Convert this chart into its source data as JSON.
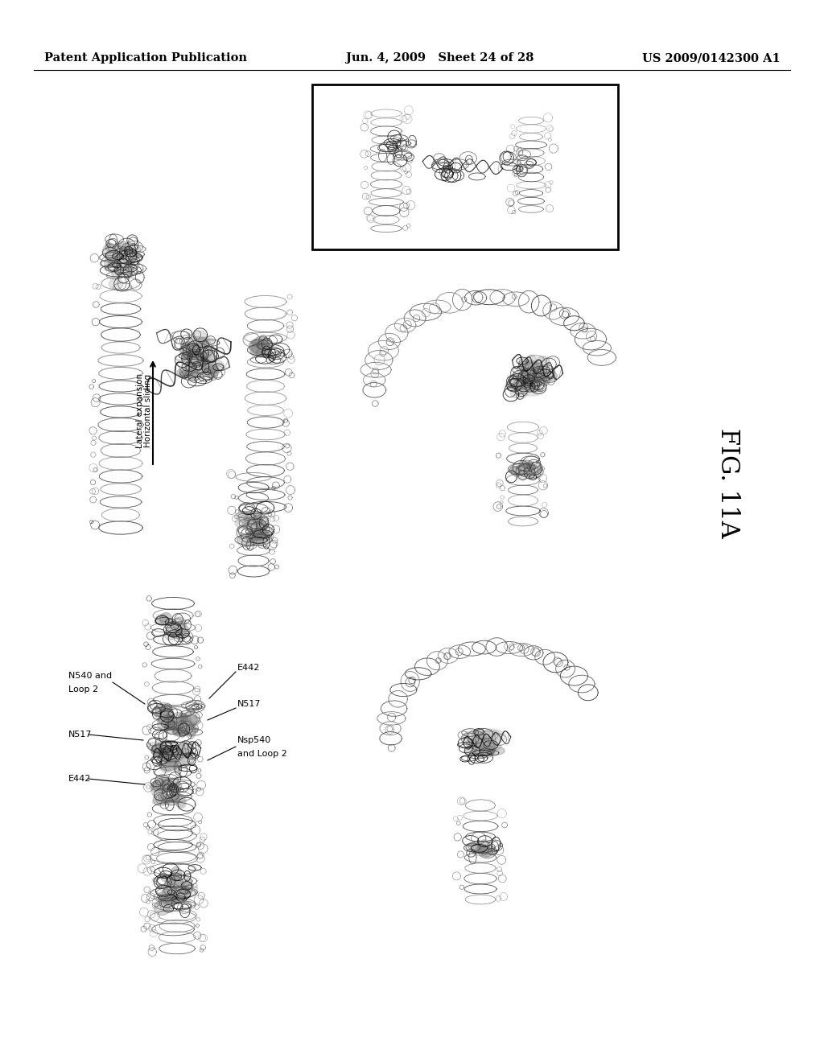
{
  "background_color": "#ffffff",
  "header_left": "Patent Application Publication",
  "header_mid": "Jun. 4, 2009   Sheet 24 of 28",
  "header_right": "US 2009/0142300 A1",
  "header_fontsize": 10.5,
  "fig_label": "FIG. 11A",
  "fig_label_fontsize": 22,
  "page_width": 10.24,
  "page_height": 13.2,
  "dpi": 100
}
